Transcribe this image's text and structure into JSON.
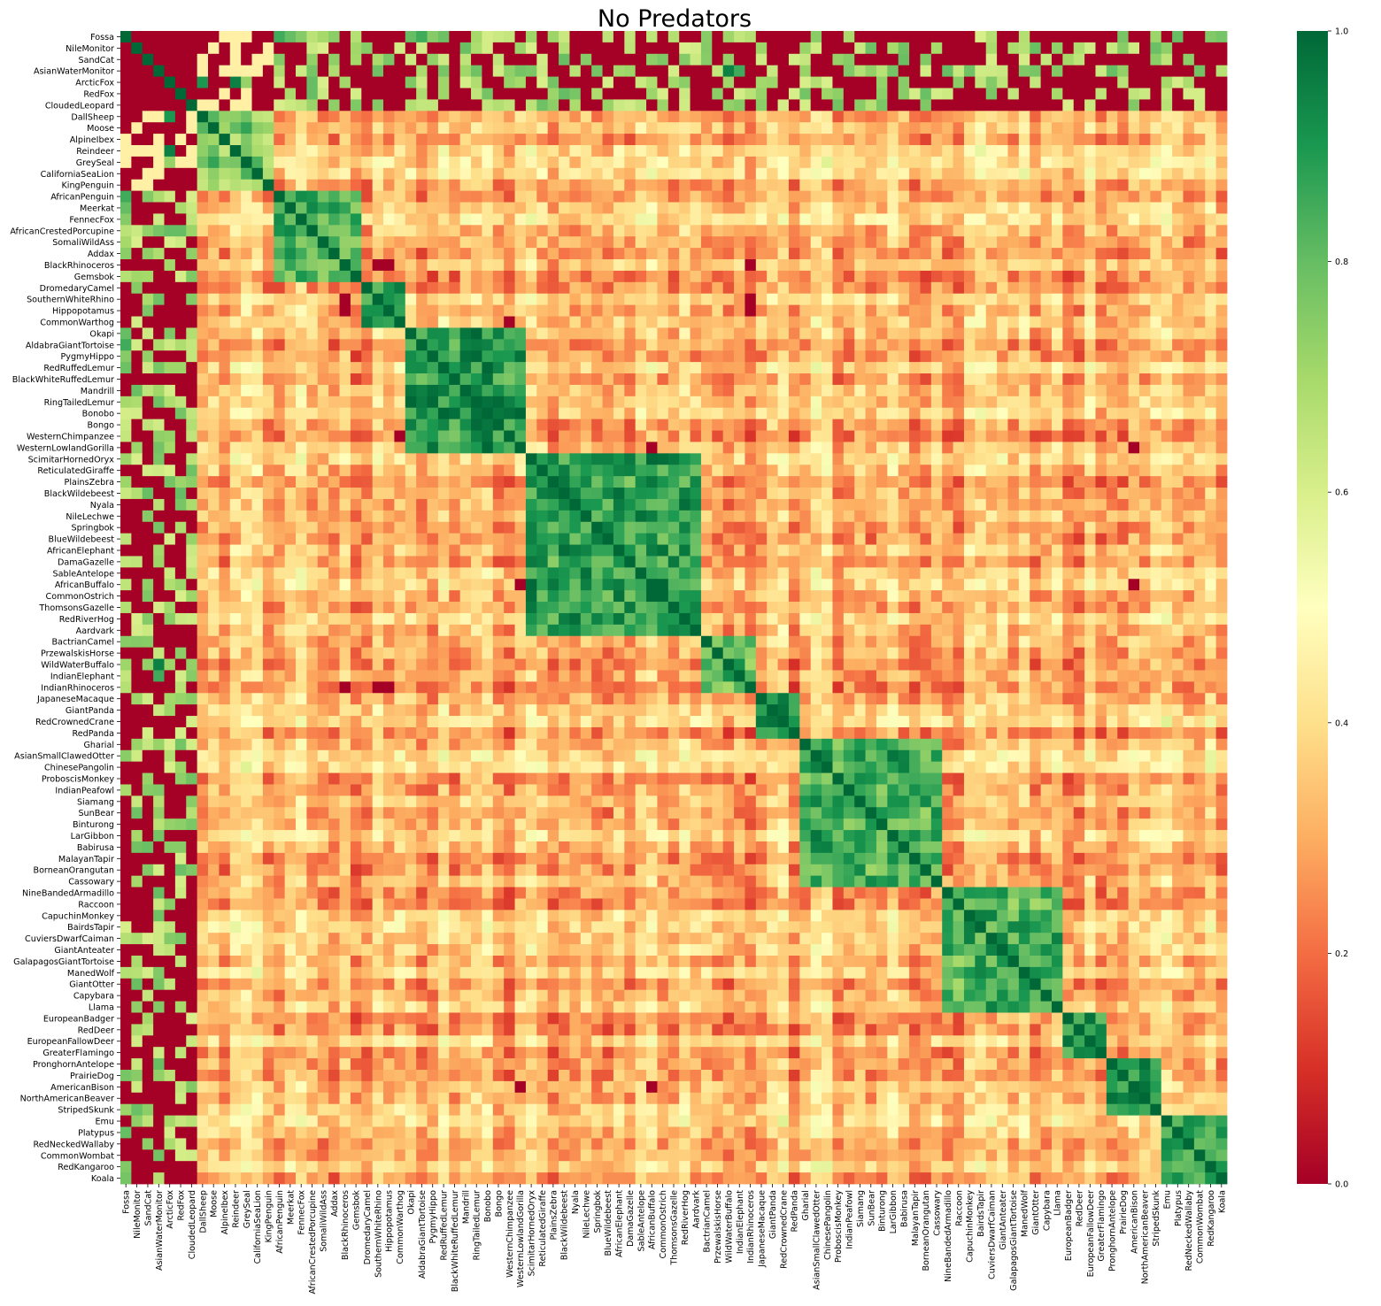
{
  "chart_data": {
    "type": "heatmap",
    "title": "No Predators",
    "xlabel": "",
    "ylabel": "",
    "labels": [
      "Fossa",
      "NileMonitor",
      "SandCat",
      "AsianWaterMonitor",
      "ArcticFox",
      "RedFox",
      "CloudedLeopard",
      "DallSheep",
      "Moose",
      "AlpineIbex",
      "Reindeer",
      "GreySeal",
      "CaliforniaSeaLion",
      "KingPenguin",
      "AfricanPenguin",
      "Meerkat",
      "FennecFox",
      "AfricanCrestedPorcupine",
      "SomaliWildAss",
      "Addax",
      "BlackRhinoceros",
      "Gemsbok",
      "DromedaryCamel",
      "SouthernWhiteRhino",
      "Hippopotamus",
      "CommonWarthog",
      "Okapi",
      "AldabraGiantTortoise",
      "PygmyHippo",
      "RedRuffedLemur",
      "BlackWhiteRuffedLemur",
      "Mandrill",
      "RingTailedLemur",
      "Bonobo",
      "Bongo",
      "WesternChimpanzee",
      "WesternLowlandGorilla",
      "ScimitarHornedOryx",
      "ReticulatedGiraffe",
      "PlainsZebra",
      "BlackWildebeest",
      "Nyala",
      "NileLechwe",
      "Springbok",
      "BlueWildebeest",
      "AfricanElephant",
      "DamaGazelle",
      "SableAntelope",
      "AfricanBuffalo",
      "CommonOstrich",
      "ThomsonsGazelle",
      "RedRiverHog",
      "Aardvark",
      "BactrianCamel",
      "PrzewalskisHorse",
      "WildWaterBuffalo",
      "IndianElephant",
      "IndianRhinoceros",
      "JapaneseMacaque",
      "GiantPanda",
      "RedCrownedCrane",
      "RedPanda",
      "Gharial",
      "AsianSmallClawedOtter",
      "ChinesePangolin",
      "ProboscisMonkey",
      "IndianPeafowl",
      "Siamang",
      "SunBear",
      "Binturong",
      "LarGibbon",
      "Babirusa",
      "MalayanTapir",
      "BorneanOrangutan",
      "Cassowary",
      "NineBandedArmadillo",
      "Raccoon",
      "CapuchinMonkey",
      "BairdsTapir",
      "CuviersDwarfCaiman",
      "GiantAnteater",
      "GalapagosGiantTortoise",
      "ManedWolf",
      "GiantOtter",
      "Capybara",
      "Llama",
      "EuropeanBadger",
      "RedDeer",
      "EuropeanFallowDeer",
      "GreaterFlamingo",
      "PronghornAntelope",
      "PrairieDog",
      "AmericanBison",
      "NorthAmericanBeaver",
      "StripedSkunk",
      "Emu",
      "Platypus",
      "RedNeckedWallaby",
      "CommonWombat",
      "RedKangaroo",
      "Koala"
    ],
    "clusters": [
      {
        "start": 7,
        "end": 13,
        "within": 0.74
      },
      {
        "start": 14,
        "end": 21,
        "within": 0.82
      },
      {
        "start": 22,
        "end": 25,
        "within": 0.86
      },
      {
        "start": 26,
        "end": 36,
        "within": 0.9
      },
      {
        "start": 37,
        "end": 52,
        "within": 0.88
      },
      {
        "start": 53,
        "end": 57,
        "within": 0.84
      },
      {
        "start": 58,
        "end": 61,
        "within": 0.86
      },
      {
        "start": 62,
        "end": 74,
        "within": 0.84
      },
      {
        "start": 75,
        "end": 85,
        "within": 0.82
      },
      {
        "start": 86,
        "end": 89,
        "within": 0.88
      },
      {
        "start": 90,
        "end": 94,
        "within": 0.9
      },
      {
        "start": 95,
        "end": 100,
        "within": 0.86
      }
    ],
    "between_cluster_value": 0.34,
    "predator_count": 7,
    "predator_to_prey_values": {
      "Fossa": {
        "AfricanPenguin": 0.85,
        "Meerkat": 0.8,
        "FennecFox": 0.75,
        "Okapi": 0.8,
        "AldabraGiantTortoise": 0.85,
        "PygmyHippo": 0.75
      },
      "NileMonitor": {
        "SomaliWildAss": 0.6,
        "ScimitarHornedOryx": 0.6
      },
      "AsianWaterMonitor": {
        "WildWaterBuffalo": 0.95,
        "IndianElephant": 0.85
      },
      "ArcticFox": {
        "DallSheep": 0.9,
        "Reindeer": 0.95
      }
    },
    "blocked_pairs": [
      [
        "BlackRhinoceros",
        "Hippopotamus"
      ],
      [
        "BlackRhinoceros",
        "SouthernWhiteRhino"
      ],
      [
        "BlackRhinoceros",
        "IndianRhinoceros"
      ],
      [
        "Hippopotamus",
        "IndianRhinoceros"
      ],
      [
        "SouthernWhiteRhino",
        "IndianRhinoceros"
      ],
      [
        "WesternChimpanzee",
        "CommonWarthog"
      ],
      [
        "WesternLowlandGorilla",
        "AfricanBuffalo"
      ],
      [
        "WesternLowlandGorilla",
        "AmericanBison"
      ],
      [
        "AfricanBuffalo",
        "AmericanBison"
      ]
    ],
    "colorbar": {
      "min": 0.0,
      "max": 1.0,
      "ticks": [
        0.0,
        0.2,
        0.4,
        0.6,
        0.8,
        1.0
      ],
      "tick_labels": [
        "0.0",
        "0.2",
        "0.4",
        "0.6",
        "0.8",
        "1.0"
      ]
    },
    "colormap": [
      "#a50026",
      "#d73027",
      "#f46d43",
      "#fdae61",
      "#fee08b",
      "#ffffbf",
      "#d9ef8b",
      "#a6d96a",
      "#66bd63",
      "#1a9850",
      "#006837"
    ],
    "grid": false,
    "legend": "colorbar-right"
  }
}
